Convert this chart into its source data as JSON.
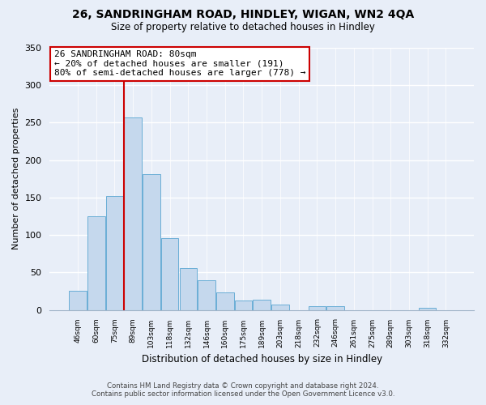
{
  "title1": "26, SANDRINGHAM ROAD, HINDLEY, WIGAN, WN2 4QA",
  "title2": "Size of property relative to detached houses in Hindley",
  "xlabel": "Distribution of detached houses by size in Hindley",
  "ylabel": "Number of detached properties",
  "bar_labels": [
    "46sqm",
    "60sqm",
    "75sqm",
    "89sqm",
    "103sqm",
    "118sqm",
    "132sqm",
    "146sqm",
    "160sqm",
    "175sqm",
    "189sqm",
    "203sqm",
    "218sqm",
    "232sqm",
    "246sqm",
    "261sqm",
    "275sqm",
    "289sqm",
    "303sqm",
    "318sqm",
    "332sqm"
  ],
  "bar_values": [
    25,
    125,
    152,
    257,
    181,
    96,
    56,
    40,
    23,
    12,
    14,
    7,
    0,
    5,
    5,
    0,
    0,
    0,
    0,
    3,
    0
  ],
  "bar_color": "#c5d8ed",
  "bar_edge_color": "#6aaed6",
  "vline_x": 2.5,
  "vline_color": "#cc0000",
  "annotation_title": "26 SANDRINGHAM ROAD: 80sqm",
  "annotation_line1": "← 20% of detached houses are smaller (191)",
  "annotation_line2": "80% of semi-detached houses are larger (778) →",
  "annotation_box_color": "white",
  "annotation_box_edge": "#cc0000",
  "ylim": [
    0,
    350
  ],
  "yticks": [
    0,
    50,
    100,
    150,
    200,
    250,
    300,
    350
  ],
  "footnote1": "Contains HM Land Registry data © Crown copyright and database right 2024.",
  "footnote2": "Contains public sector information licensed under the Open Government Licence v3.0.",
  "bg_color": "#e8eef8",
  "plot_bg_color": "#e8eef8",
  "grid_color": "#ffffff",
  "spine_color": "#a0b4c8"
}
